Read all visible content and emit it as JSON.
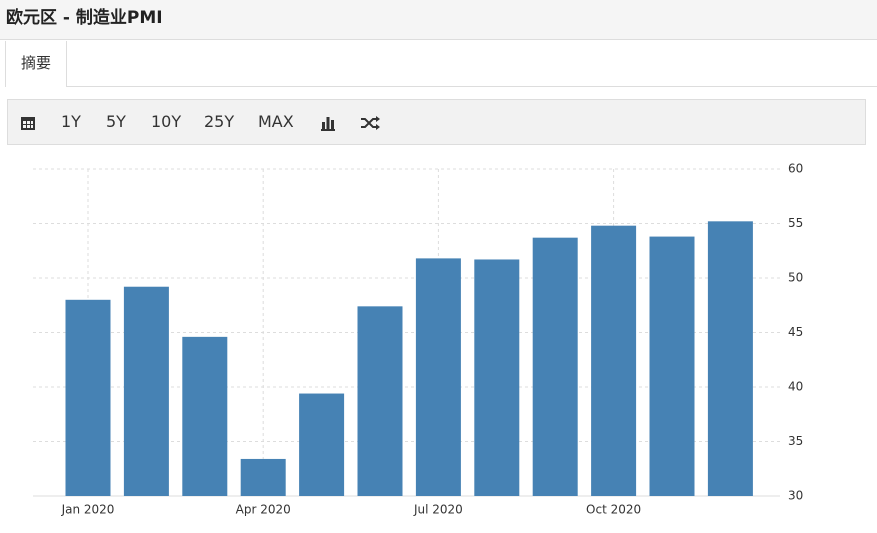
{
  "header": {
    "title": "欧元区 - 制造业PMI"
  },
  "tabs": [
    "摘要"
  ],
  "toolbar": [
    "1Y",
    "5Y",
    "10Y",
    "25Y",
    "MAX"
  ],
  "chart_data": {
    "type": "bar",
    "categories": [
      "Jan 2020",
      null,
      null,
      "Apr 2020",
      null,
      null,
      "Jul 2020",
      null,
      null,
      "Oct 2020",
      null,
      null
    ],
    "values": [
      48.0,
      49.2,
      44.6,
      33.4,
      39.4,
      47.4,
      51.8,
      51.7,
      53.7,
      54.8,
      53.8,
      55.2
    ],
    "color": "#4682b4",
    "ylim": [
      30,
      60
    ],
    "yticks": [
      30,
      35,
      40,
      45,
      50,
      55,
      60
    ],
    "grid": true
  }
}
